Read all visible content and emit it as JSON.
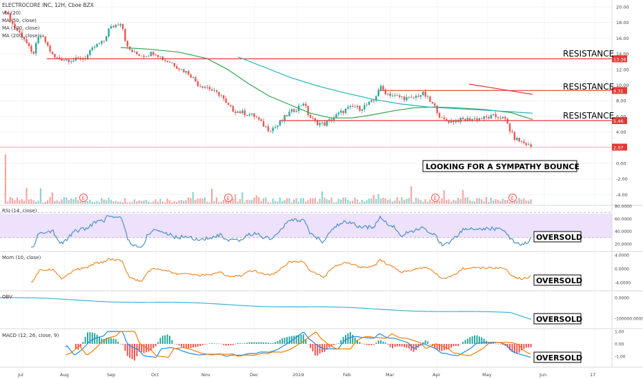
{
  "header": {
    "symbol_line": "ELECTROCORE INC, 12H, Cboe BZX",
    "indicators": [
      "Vol (20)",
      "MA (50, close)",
      "MA (100, close)",
      "MA (200, close)"
    ]
  },
  "price_axis": {
    "ticks": [
      "20.00",
      "18.00",
      "16.00",
      "14.00",
      "12.00",
      "10.00",
      "8.00",
      "6.00",
      "4.00",
      "2.00",
      "0.00",
      "-2.00",
      "-4.00"
    ],
    "tick_values": [
      20,
      18,
      16,
      14,
      12,
      10,
      8,
      6,
      4,
      2,
      0,
      -2,
      -4
    ],
    "badges": [
      {
        "text": "13.36",
        "value": 13.36,
        "color": "#e53935"
      },
      {
        "text": "9.31",
        "value": 9.31,
        "color": "#e53935"
      },
      {
        "text": "5.46",
        "value": 5.46,
        "color": "#e53935"
      },
      {
        "text": "2.07",
        "value": 2.07,
        "color": "#e53935"
      }
    ]
  },
  "annotations": {
    "resistance": "RESISTANCE",
    "resistance_levels": [
      13.36,
      9.31,
      5.46
    ],
    "current_level": 2.07,
    "sympathy": "LOOKING FOR A SYMPATHY BOUNCE",
    "oversold": "OVERSOLD"
  },
  "earnings_marker": "E",
  "time_axis": [
    "Jul",
    "Aug",
    "Sep",
    "Oct",
    "Nov",
    "Dec",
    "2019",
    "Feb",
    "Mar",
    "Apr",
    "May",
    "Jun",
    "17"
  ],
  "panes": {
    "rsi": {
      "title": "RSI (14, close)",
      "ticks": [
        "80.0000",
        "60.0000",
        "40.0000",
        "20.0000"
      ],
      "tick_values": [
        80,
        60,
        40,
        20
      ],
      "upper": 70,
      "lower": 30
    },
    "mom": {
      "title": "Mom (10, close)",
      "ticks": [
        "4.0000",
        "0.0000",
        "-4.0000"
      ],
      "tick_values": [
        4,
        0,
        -4
      ]
    },
    "obv": {
      "title": "OBV",
      "ticks": [
        "0.0000",
        "-100000.0000"
      ],
      "tick_values": [
        0,
        -100000
      ]
    },
    "macd": {
      "title": "MACD (12, 26, close, 9)",
      "ticks": [
        "1.00",
        "0.00",
        "-1.00"
      ],
      "tick_values": [
        1,
        0,
        -1
      ]
    }
  },
  "colors": {
    "up": "#26a69a",
    "down": "#ef5350",
    "ma50": "#2ea44f",
    "ma100": "#26b5b5",
    "resistance": "#e53935",
    "rsi": "#4a90c8",
    "rsi_band": "#ede1fb",
    "mom": "#f08a2c",
    "obv": "#35b6d6",
    "macd": "#1e88e5",
    "signal": "#f57c00",
    "trend": "#e53935"
  },
  "chart_data": {
    "type": "candlestick",
    "title": "ELECTROCORE INC, 12H, Cboe BZX",
    "time_range": [
      "Jul",
      "May"
    ],
    "price_points": [
      [
        "Jul",
        19.5
      ],
      [
        "Jul",
        16.5
      ],
      [
        "Aug",
        13.5
      ],
      [
        "Aug",
        13.4
      ],
      [
        "Sep",
        17.2
      ],
      [
        "Sep",
        18.2
      ],
      [
        "Oct",
        14.2
      ],
      [
        "Oct",
        13.8
      ],
      [
        "Oct",
        12.5
      ],
      [
        "Nov",
        9.5
      ],
      [
        "Nov",
        6.5
      ],
      [
        "Dec",
        5.6
      ],
      [
        "Dec",
        4.3
      ],
      [
        "2019",
        5.5
      ],
      [
        "2019",
        8.0
      ],
      [
        "2019",
        5.0
      ],
      [
        "Feb",
        6.2
      ],
      [
        "Feb",
        7.2
      ],
      [
        "Feb",
        9.8
      ],
      [
        "Mar",
        8.6
      ],
      [
        "Mar",
        8.9
      ],
      [
        "Mar",
        7.5
      ],
      [
        "Apr",
        5.4
      ],
      [
        "Apr",
        5.6
      ],
      [
        "May",
        5.7
      ],
      [
        "May",
        4.5
      ],
      [
        "May",
        2.6
      ],
      [
        "May",
        2.07
      ]
    ],
    "ma50": [
      14.8,
      14.5,
      14.0,
      12.0,
      10.0,
      8.0,
      6.5,
      6.0,
      6.2,
      6.8,
      7.2,
      7.0,
      6.5,
      5.6
    ],
    "ma100": [
      13.6,
      12.0,
      10.5,
      9.5,
      8.5,
      7.7,
      7.0,
      6.5
    ],
    "resistance_levels": [
      13.36,
      9.31,
      5.46
    ],
    "current_price": 2.07,
    "ylim": [
      -4,
      21
    ]
  }
}
